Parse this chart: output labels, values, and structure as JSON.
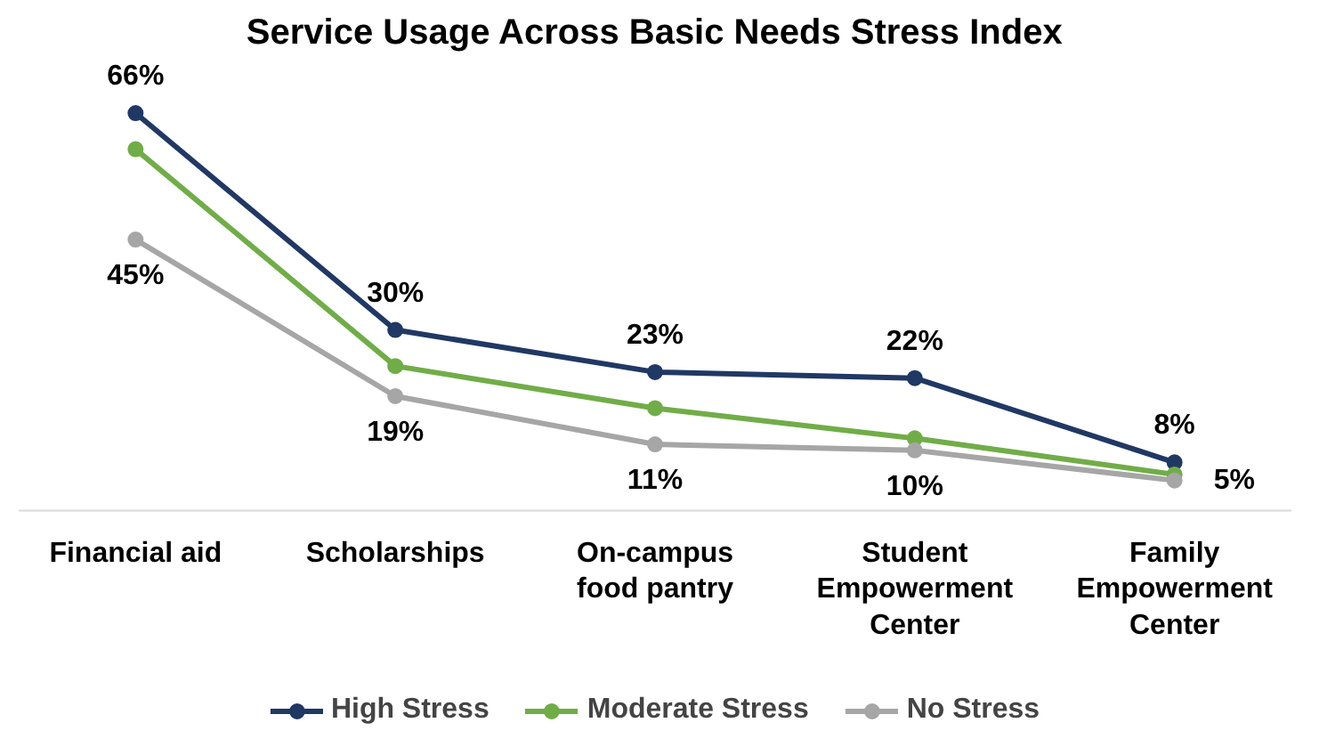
{
  "chart_data": {
    "type": "line",
    "title": "Service Usage Across Basic Needs Stress Index",
    "categories": [
      "Financial aid",
      "Scholarships",
      "On-campus food pantry",
      "Student Empowerment Center",
      "Family Empowerment Center"
    ],
    "series": [
      {
        "name": "High Stress",
        "color": "#203864",
        "values": [
          66,
          30,
          23,
          22,
          8
        ],
        "value_labels": [
          "66%",
          "30%",
          "23%",
          "22%",
          "8%"
        ]
      },
      {
        "name": "Moderate Stress",
        "color": "#70ad47",
        "values": [
          60,
          24,
          17,
          12,
          6
        ]
      },
      {
        "name": "No Stress",
        "color": "#a6a6a6",
        "values": [
          45,
          19,
          11,
          10,
          5
        ],
        "value_labels": [
          "45%",
          "19%",
          "11%",
          "10%",
          "5%"
        ]
      }
    ],
    "marker": "circle",
    "line_style": "solid",
    "legend": "bottom",
    "grid": false,
    "tick_labels": "x"
  }
}
